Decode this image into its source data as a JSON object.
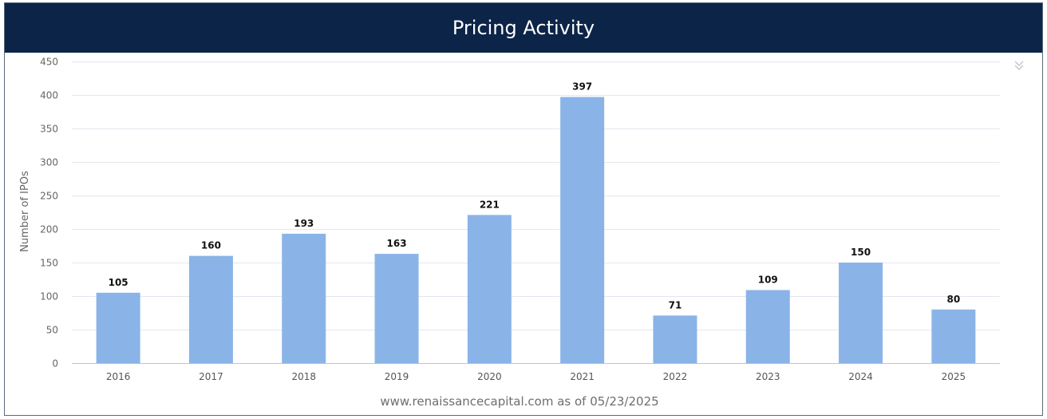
{
  "header": {
    "title": "Pricing Activity"
  },
  "icons": {
    "collapse": "double-chevron-down-icon"
  },
  "colors": {
    "header_bg": "#0c2448",
    "bar": "#8ab4e8",
    "grid": "#e3e8ef"
  },
  "chart_data": {
    "type": "bar",
    "title": "",
    "xlabel": "",
    "ylabel": "Number of IPOs",
    "categories": [
      "2016",
      "2017",
      "2018",
      "2019",
      "2020",
      "2021",
      "2022",
      "2023",
      "2024",
      "2025"
    ],
    "values": [
      105,
      160,
      193,
      163,
      221,
      397,
      71,
      109,
      150,
      80
    ],
    "ylim": [
      0,
      450
    ],
    "yticks": [
      0,
      50,
      100,
      150,
      200,
      250,
      300,
      350,
      400,
      450
    ],
    "data_labels": true,
    "grid": true,
    "legend": "none"
  },
  "footer": {
    "source": "www.renaissancecapital.com as of 05/23/2025"
  }
}
